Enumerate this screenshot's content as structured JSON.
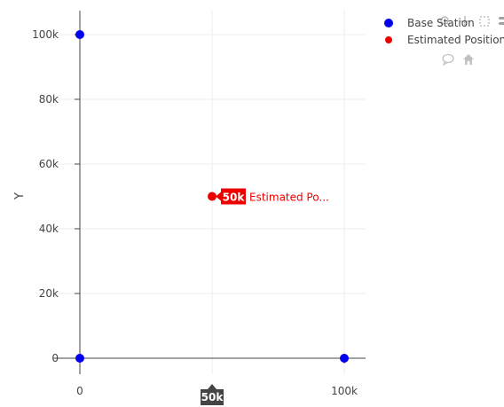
{
  "chart_data": {
    "type": "scatter",
    "xlabel": "",
    "ylabel": "Y",
    "xlim": [
      -5000,
      108000
    ],
    "ylim": [
      -7500,
      107500
    ],
    "x_ticks": [
      {
        "value": 0,
        "label": "0"
      },
      {
        "value": 100000,
        "label": "100k"
      }
    ],
    "y_ticks": [
      {
        "value": 0,
        "label": "0"
      },
      {
        "value": 20000,
        "label": "20k"
      },
      {
        "value": 40000,
        "label": "40k"
      },
      {
        "value": 60000,
        "label": "60k"
      },
      {
        "value": 80000,
        "label": "80k"
      },
      {
        "value": 100000,
        "label": "100k"
      }
    ],
    "grid": true,
    "legend_position": "top-right",
    "series": [
      {
        "name": "Base Station",
        "color": "#0000ee",
        "points": [
          {
            "x": 0,
            "y": 100000
          },
          {
            "x": 0,
            "y": 0
          },
          {
            "x": 100000,
            "y": 0
          }
        ]
      },
      {
        "name": "Estimated Position",
        "color": "#ee0000",
        "points": [
          {
            "x": 50000,
            "y": 50000
          }
        ]
      }
    ],
    "hover": {
      "x": 50000,
      "y": 50000,
      "value_label": "50k",
      "trace_label": "Estimated Po...",
      "x_spike_label": "50k"
    }
  },
  "modebar": {
    "icons": [
      "zoom-icon",
      "pan-icon",
      "box-select-icon",
      "menu-icon",
      "comment-icon",
      "home-icon"
    ]
  }
}
